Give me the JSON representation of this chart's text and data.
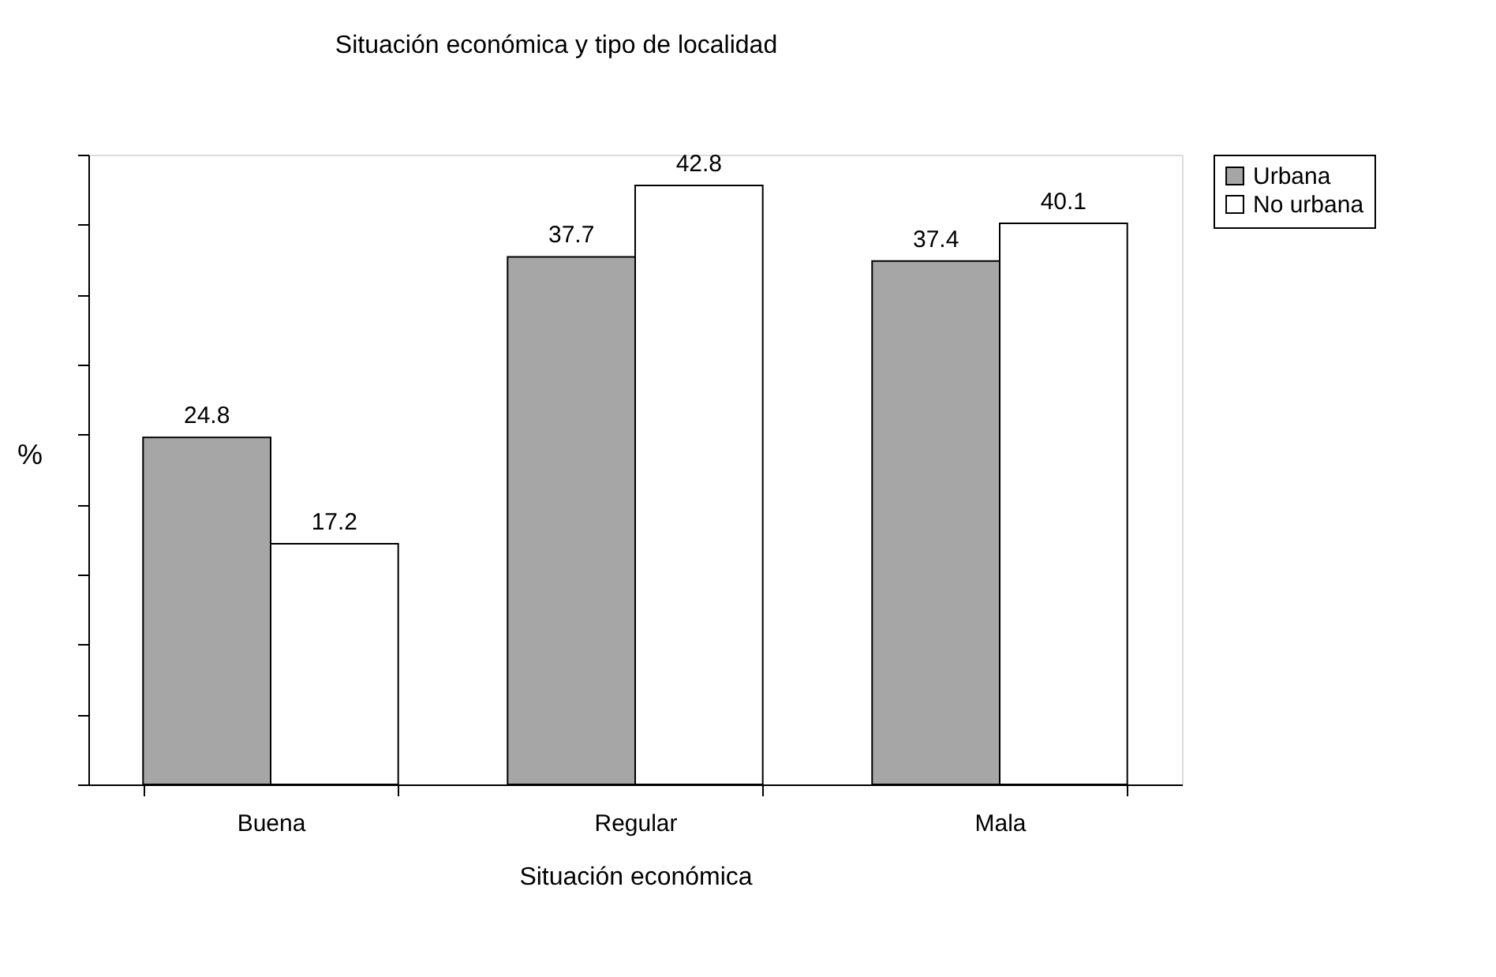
{
  "chart_data": {
    "type": "bar",
    "title": "Situación económica y tipo de localidad",
    "xlabel": "Situación económica",
    "ylabel": "%",
    "categories": [
      "Buena",
      "Regular",
      "Mala"
    ],
    "series": [
      {
        "name": "Urbana",
        "color": "#a6a6a6",
        "values": [
          24.8,
          37.7,
          37.4
        ]
      },
      {
        "name": "No urbana",
        "color": "#ffffff",
        "values": [
          17.2,
          42.8,
          40.1
        ]
      }
    ],
    "ylim": [
      0,
      45
    ],
    "yticks": [
      {
        "value": 0,
        "label": null
      },
      {
        "value": 5,
        "label": null
      },
      {
        "value": 10,
        "label": null
      },
      {
        "value": 15,
        "label": null
      },
      {
        "value": 20,
        "label": null
      },
      {
        "value": 25,
        "label": null
      },
      {
        "value": 30,
        "label": null
      },
      {
        "value": 35,
        "label": null
      },
      {
        "value": 40,
        "label": null
      },
      {
        "value": 45,
        "label": null
      }
    ],
    "tick_labels": "x",
    "data_labels": true,
    "grid": false,
    "legend": "right"
  }
}
